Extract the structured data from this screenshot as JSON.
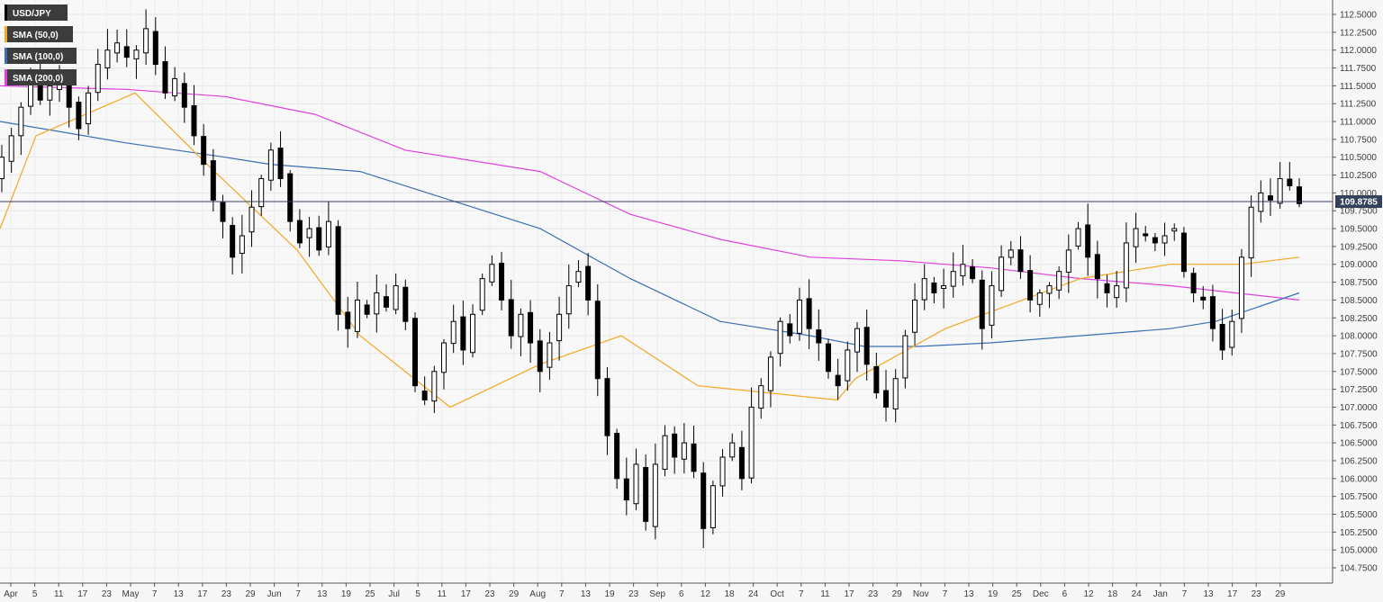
{
  "chart_data": {
    "type": "candlestick",
    "symbol": "USD/JPY",
    "ylim": [
      104.6,
      112.6
    ],
    "y_ticks": [
      "112.5000",
      "112.2500",
      "112.0000",
      "111.7500",
      "111.5000",
      "111.2500",
      "111.0000",
      "110.7500",
      "110.5000",
      "110.2500",
      "110.0000",
      "109.7500",
      "109.5000",
      "109.2500",
      "109.0000",
      "108.7500",
      "108.5000",
      "108.2500",
      "108.0000",
      "107.7500",
      "107.5000",
      "107.2500",
      "107.0000",
      "106.7500",
      "106.5000",
      "106.2500",
      "106.0000",
      "105.7500",
      "105.5000",
      "105.2500",
      "105.0000",
      "104.7500"
    ],
    "x_ticks": [
      "Apr",
      "5",
      "11",
      "17",
      "23",
      "May",
      "7",
      "13",
      "17",
      "23",
      "29",
      "Jun",
      "7",
      "13",
      "19",
      "25",
      "Jul",
      "5",
      "11",
      "17",
      "23",
      "29",
      "Aug",
      "7",
      "13",
      "19",
      "23",
      "Sep",
      "6",
      "12",
      "18",
      "24",
      "Oct",
      "7",
      "11",
      "17",
      "23",
      "29",
      "Nov",
      "7",
      "13",
      "19",
      "25",
      "Dec",
      "6",
      "12",
      "18",
      "24",
      "Jan",
      "7",
      "13",
      "17",
      "23",
      "29"
    ],
    "current_price": 109.8785,
    "current_price_label": "109.8785",
    "grid": true,
    "legend_position": "top-left",
    "legend": [
      {
        "label": "USD/JPY",
        "color": "#000000"
      },
      {
        "label": "SMA (50,0)",
        "color": "#f5a623"
      },
      {
        "label": "SMA (100,0)",
        "color": "#3a6fb5"
      },
      {
        "label": "SMA (200,0)",
        "color": "#e040e0"
      }
    ],
    "ohlc_path": [
      110.5,
      110.8,
      111.2,
      111.6,
      111.3,
      111.5,
      111.6,
      111.2,
      110.9,
      111.4,
      111.8,
      112.0,
      112.1,
      111.9,
      112.0,
      112.3,
      111.8,
      111.4,
      111.6,
      111.2,
      110.8,
      110.4,
      109.9,
      109.6,
      109.1,
      109.4,
      109.8,
      110.2,
      110.6,
      110.2,
      109.6,
      109.3,
      109.5,
      109.2,
      109.6,
      108.3,
      108.1,
      108.5,
      108.3,
      108.6,
      108.4,
      108.7,
      108.2,
      107.3,
      107.1,
      107.5,
      107.9,
      108.2,
      107.8,
      108.3,
      108.8,
      109.0,
      108.5,
      108.0,
      108.3,
      107.9,
      107.5,
      107.9,
      108.3,
      108.7,
      108.9,
      108.5,
      107.4,
      106.6,
      106.0,
      105.7,
      106.2,
      105.4,
      106.2,
      106.6,
      106.3,
      106.5,
      106.1,
      105.3,
      105.9,
      106.3,
      106.5,
      106.0,
      107.0,
      107.3,
      107.7,
      108.2,
      108.0,
      108.5,
      108.1,
      107.9,
      107.5,
      107.3,
      107.8,
      108.1,
      107.6,
      107.2,
      107.0,
      107.4,
      108.0,
      108.5,
      108.8,
      108.6,
      108.7,
      108.9,
      109.0,
      108.8,
      108.1,
      108.7,
      109.1,
      109.2,
      108.9,
      108.5,
      108.6,
      108.7,
      108.9,
      109.2,
      109.5,
      109.1,
      108.8,
      108.6,
      108.7,
      109.3,
      109.5,
      109.4,
      109.3,
      109.4,
      109.5,
      108.9,
      108.6,
      108.5,
      108.1,
      107.8,
      108.2,
      109.1,
      109.8,
      110.0,
      109.9,
      110.2,
      110.1,
      109.85
    ],
    "sma50": [
      [
        0,
        109.5
      ],
      [
        40,
        110.8
      ],
      [
        150,
        111.4
      ],
      [
        230,
        110.4
      ],
      [
        330,
        109.2
      ],
      [
        400,
        108.0
      ],
      [
        500,
        107.0
      ],
      [
        600,
        107.6
      ],
      [
        690,
        108.0
      ],
      [
        775,
        107.3
      ],
      [
        930,
        107.1
      ],
      [
        950,
        107.4
      ],
      [
        1050,
        108.1
      ],
      [
        1200,
        108.8
      ],
      [
        1300,
        109.0
      ],
      [
        1380,
        109.0
      ],
      [
        1443,
        109.1
      ]
    ],
    "sma100": [
      [
        0,
        111.0
      ],
      [
        140,
        110.7
      ],
      [
        250,
        110.5
      ],
      [
        300,
        110.4
      ],
      [
        400,
        110.3
      ],
      [
        600,
        109.5
      ],
      [
        700,
        108.8
      ],
      [
        800,
        108.2
      ],
      [
        900,
        108.0
      ],
      [
        960,
        107.85
      ],
      [
        1020,
        107.85
      ],
      [
        1100,
        107.9
      ],
      [
        1200,
        108.0
      ],
      [
        1300,
        108.1
      ],
      [
        1350,
        108.2
      ],
      [
        1443,
        108.6
      ]
    ],
    "sma200": [
      [
        0,
        111.5
      ],
      [
        140,
        111.45
      ],
      [
        250,
        111.35
      ],
      [
        350,
        111.1
      ],
      [
        450,
        110.6
      ],
      [
        600,
        110.3
      ],
      [
        700,
        109.7
      ],
      [
        800,
        109.35
      ],
      [
        900,
        109.1
      ],
      [
        1000,
        109.05
      ],
      [
        1100,
        108.95
      ],
      [
        1200,
        108.8
      ],
      [
        1300,
        108.7
      ],
      [
        1443,
        108.5
      ]
    ]
  }
}
